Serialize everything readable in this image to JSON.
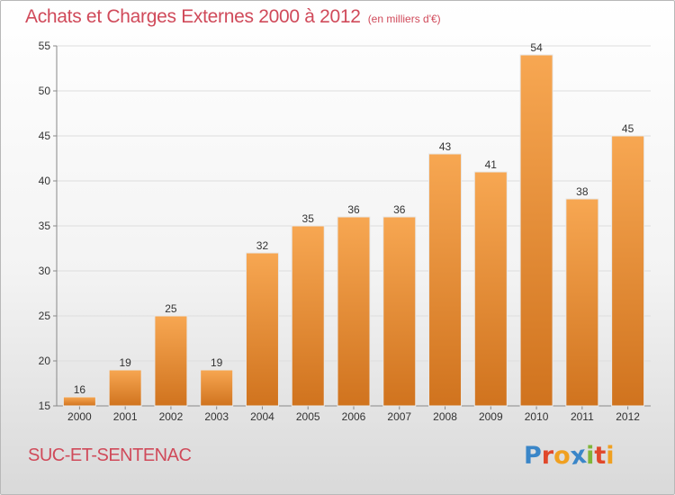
{
  "header": {
    "title": "Achats et Charges Externes 2000 à 2012",
    "subtitle": "(en milliers d'€)"
  },
  "footer": {
    "commune": "SUC-ET-SENTENAC",
    "logo": {
      "text": "Proxiti",
      "letter_colors": [
        "#3a86c8",
        "#e0482b",
        "#f0a020",
        "#3a86c8",
        "#7fb539",
        "#e0482b",
        "#f0a020"
      ]
    }
  },
  "colors": {
    "bar_top": "#f7a752",
    "bar_bottom": "#d0731e",
    "grid": "#dddddd",
    "axis": "#888888",
    "title": "#d04a5a"
  },
  "chart_data": {
    "type": "bar",
    "title": "Achats et Charges Externes 2000 à 2012",
    "subtitle": "(en milliers d'€)",
    "categories": [
      "2000",
      "2001",
      "2002",
      "2003",
      "2004",
      "2005",
      "2006",
      "2007",
      "2008",
      "2009",
      "2010",
      "2011",
      "2012"
    ],
    "values": [
      16,
      19,
      25,
      19,
      32,
      35,
      36,
      36,
      43,
      41,
      54,
      38,
      45
    ],
    "ylim": [
      15,
      55
    ],
    "yticks": [
      15,
      20,
      25,
      30,
      35,
      40,
      45,
      50,
      55
    ],
    "grid": true,
    "legend": "none"
  }
}
